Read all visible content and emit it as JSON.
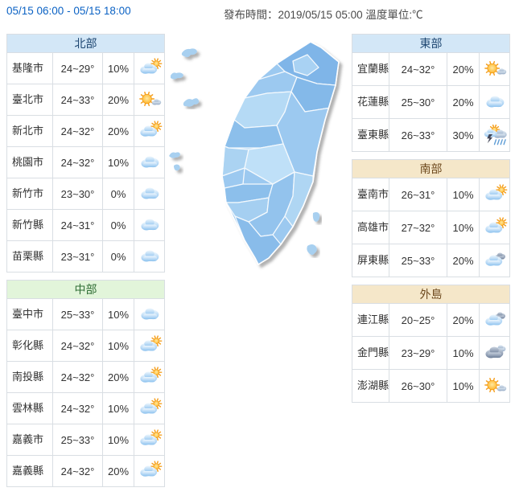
{
  "header": {
    "period": "05/15 06:00 - 05/15 18:00",
    "issued": "發布時間：2019/05/15 05:00 溫度單位:℃"
  },
  "columns": {
    "west": [
      "north",
      "central"
    ],
    "east": [
      "east",
      "south",
      "islands"
    ]
  },
  "regions": [
    {
      "id": "north",
      "title": "北部",
      "theme": "blue",
      "rows": [
        {
          "name": "基隆市",
          "temp": "24~29°",
          "pop": "10%",
          "icon": "cloud-sun"
        },
        {
          "name": "臺北市",
          "temp": "24~33°",
          "pop": "20%",
          "icon": "sunny-cloud"
        },
        {
          "name": "新北市",
          "temp": "24~32°",
          "pop": "20%",
          "icon": "cloud-sun"
        },
        {
          "name": "桃園市",
          "temp": "24~32°",
          "pop": "10%",
          "icon": "cloud"
        },
        {
          "name": "新竹市",
          "temp": "23~30°",
          "pop": "0%",
          "icon": "cloud"
        },
        {
          "name": "新竹縣",
          "temp": "24~31°",
          "pop": "0%",
          "icon": "cloud"
        },
        {
          "name": "苗栗縣",
          "temp": "23~31°",
          "pop": "0%",
          "icon": "cloud"
        }
      ]
    },
    {
      "id": "central",
      "title": "中部",
      "theme": "green",
      "rows": [
        {
          "name": "臺中市",
          "temp": "25~33°",
          "pop": "10%",
          "icon": "cloud"
        },
        {
          "name": "彰化縣",
          "temp": "24~32°",
          "pop": "10%",
          "icon": "cloud-sun"
        },
        {
          "name": "南投縣",
          "temp": "24~32°",
          "pop": "20%",
          "icon": "cloud-sun"
        },
        {
          "name": "雲林縣",
          "temp": "24~32°",
          "pop": "10%",
          "icon": "cloud-sun"
        },
        {
          "name": "嘉義市",
          "temp": "25~33°",
          "pop": "10%",
          "icon": "cloud-sun"
        },
        {
          "name": "嘉義縣",
          "temp": "24~32°",
          "pop": "20%",
          "icon": "cloud-sun"
        }
      ]
    },
    {
      "id": "east",
      "title": "東部",
      "theme": "blue",
      "rows": [
        {
          "name": "宜蘭縣",
          "temp": "24~32°",
          "pop": "20%",
          "icon": "sunny-cloud"
        },
        {
          "name": "花蓮縣",
          "temp": "25~30°",
          "pop": "20%",
          "icon": "cloud"
        },
        {
          "name": "臺東縣",
          "temp": "26~33°",
          "pop": "30%",
          "icon": "thunder-rain"
        }
      ]
    },
    {
      "id": "south",
      "title": "南部",
      "theme": "tan",
      "rows": [
        {
          "name": "臺南市",
          "temp": "26~31°",
          "pop": "10%",
          "icon": "cloud-sun"
        },
        {
          "name": "高雄市",
          "temp": "27~32°",
          "pop": "10%",
          "icon": "cloud-sun"
        },
        {
          "name": "屏東縣",
          "temp": "25~33°",
          "pop": "20%",
          "icon": "cloud-dark"
        }
      ]
    },
    {
      "id": "islands",
      "title": "外島",
      "theme": "tan",
      "rows": [
        {
          "name": "連江縣",
          "temp": "20~25°",
          "pop": "20%",
          "icon": "cloud-dark"
        },
        {
          "name": "金門縣",
          "temp": "23~29°",
          "pop": "10%",
          "icon": "dark-cloud"
        },
        {
          "name": "澎湖縣",
          "temp": "26~30°",
          "pop": "10%",
          "icon": "sunny-cloud"
        }
      ]
    }
  ],
  "icons_legend": {
    "cloud": "cloudy",
    "cloud-sun": "mostly cloudy with sun",
    "sunny-cloud": "sunny with cloud",
    "cloud-dark": "cloudy with dark cloud",
    "dark-cloud": "overcast dark cloud",
    "thunder-rain": "thunderstorms with rain"
  },
  "colors": {
    "link_blue": "#0b62c4",
    "header_blue_bg": "#d3e7f7",
    "header_blue_text": "#1d4671",
    "header_green_bg": "#e2f5da",
    "header_green_text": "#2f6d34",
    "header_tan_bg": "#f5e7c9",
    "header_tan_text": "#6e4a1e",
    "table_border": "#d9dee3",
    "cell_text": "#333333",
    "map_blues": [
      "#85b9e9",
      "#9cc9f0",
      "#b5daf5",
      "#c3e1f8"
    ]
  },
  "map": {
    "label": "taiwan-county-map"
  }
}
